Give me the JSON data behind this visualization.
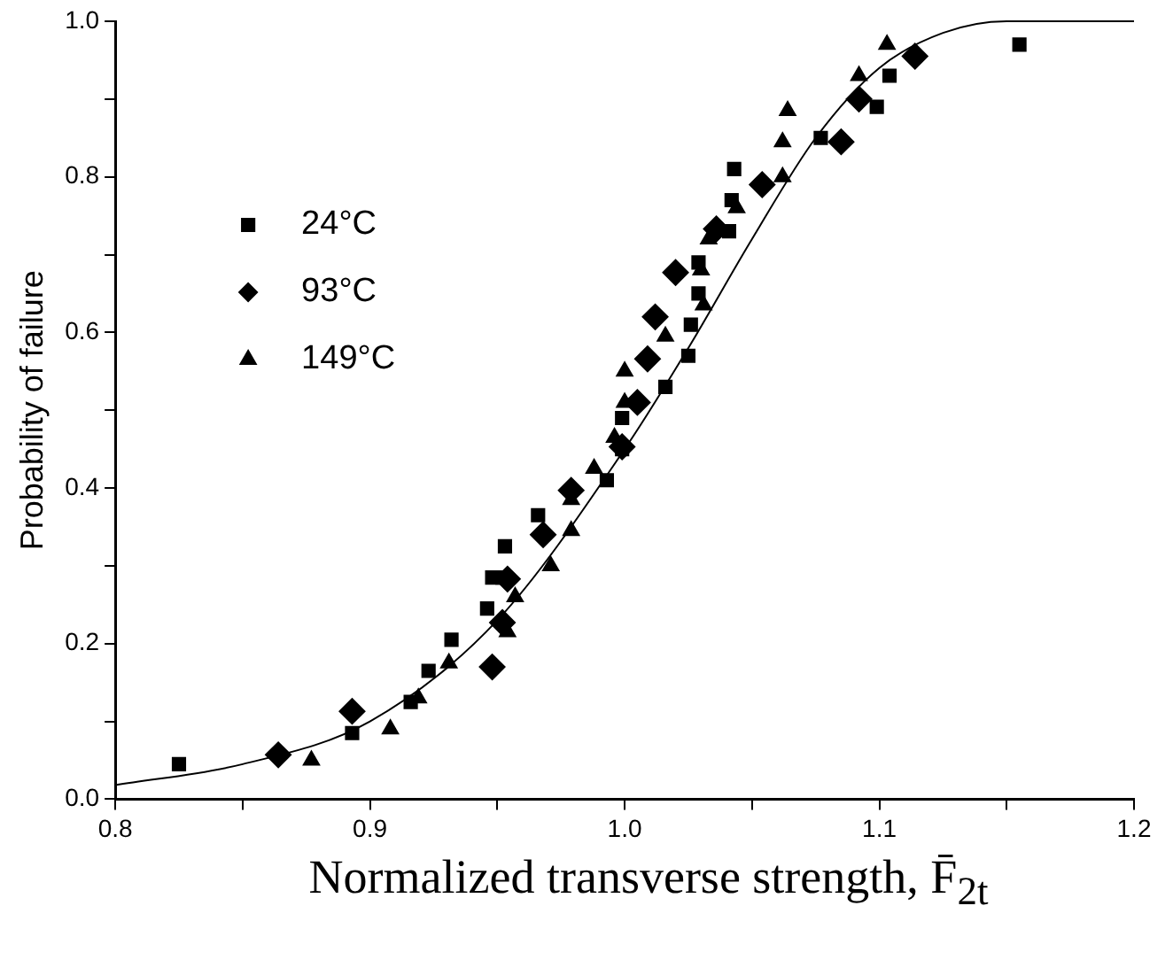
{
  "chart_data": {
    "type": "scatter",
    "xlabel": "Normalized transverse strength, F̄$_{2t}$",
    "ylabel": "Probability of failure",
    "xlim": [
      0.8,
      1.2
    ],
    "ylim": [
      0,
      1.0
    ],
    "xticks": [
      {
        "value": 0.8,
        "label": "0.8"
      },
      {
        "value": 0.85,
        "label": null
      },
      {
        "value": 0.9,
        "label": "0.9"
      },
      {
        "value": 0.95,
        "label": null
      },
      {
        "value": 1.0,
        "label": "1.0"
      },
      {
        "value": 1.05,
        "label": null
      },
      {
        "value": 1.1,
        "label": "1.1"
      },
      {
        "value": 1.15,
        "label": null
      },
      {
        "value": 1.2,
        "label": "1.2"
      }
    ],
    "yticks": [
      {
        "value": 0,
        "label": "0.0"
      },
      {
        "value": 0.1,
        "label": null
      },
      {
        "value": 0.2,
        "label": "0.2"
      },
      {
        "value": 0.3,
        "label": null
      },
      {
        "value": 0.4,
        "label": "0.4"
      },
      {
        "value": 0.5,
        "label": null
      },
      {
        "value": 0.6,
        "label": "0.6"
      },
      {
        "value": 0.7,
        "label": null
      },
      {
        "value": 0.8,
        "label": "0.8"
      },
      {
        "value": 0.9,
        "label": null
      },
      {
        "value": 1.0,
        "label": "1.0"
      }
    ],
    "grid": false,
    "legend": "top left",
    "series": [
      {
        "name": "24°C",
        "color": "#000000",
        "marker": "square",
        "x": [
          0.825,
          0.893,
          0.916,
          0.923,
          0.932,
          0.946,
          0.948,
          0.952,
          0.953,
          0.966,
          0.993,
          0.999,
          0.999,
          1.016,
          1.025,
          1.026,
          1.029,
          1.029,
          1.041,
          1.042,
          1.043,
          1.077,
          1.099,
          1.104,
          1.155
        ],
        "values": [
          0.045,
          0.085,
          0.125,
          0.165,
          0.205,
          0.245,
          0.285,
          0.285,
          0.325,
          0.365,
          0.41,
          0.45,
          0.49,
          0.53,
          0.57,
          0.61,
          0.65,
          0.69,
          0.73,
          0.77,
          0.81,
          0.85,
          0.89,
          0.93,
          0.97
        ]
      },
      {
        "name": "93°C",
        "color": "#000000",
        "marker": "diamond",
        "x": [
          0.864,
          0.893,
          0.948,
          0.952,
          0.954,
          0.968,
          0.979,
          0.999,
          1.005,
          1.009,
          1.012,
          1.02,
          1.036,
          1.054,
          1.085,
          1.092,
          1.114
        ],
        "values": [
          0.057,
          0.113,
          0.17,
          0.227,
          0.283,
          0.34,
          0.397,
          0.453,
          0.51,
          0.566,
          0.62,
          0.677,
          0.733,
          0.79,
          0.845,
          0.9,
          0.955
        ]
      },
      {
        "name": "149°C",
        "color": "#000000",
        "marker": "triangle",
        "x": [
          0.877,
          0.908,
          0.919,
          0.931,
          0.954,
          0.957,
          0.971,
          0.979,
          0.979,
          0.988,
          0.996,
          1.0,
          1.0,
          1.016,
          1.031,
          1.03,
          1.033,
          1.044,
          1.062,
          1.062,
          1.064,
          1.092,
          1.103
        ],
        "values": [
          0.05,
          0.09,
          0.13,
          0.175,
          0.215,
          0.26,
          0.3,
          0.345,
          0.385,
          0.425,
          0.465,
          0.51,
          0.55,
          0.595,
          0.635,
          0.68,
          0.72,
          0.76,
          0.8,
          0.845,
          0.885,
          0.93,
          0.97
        ]
      },
      {
        "type": "line",
        "color": "#000000",
        "marker": "none",
        "line_style": "solid",
        "x": [
          0.8,
          0.85,
          0.9,
          0.95,
          1.0,
          1.025,
          1.05,
          1.075,
          1.1,
          1.125,
          1.15,
          1.2
        ],
        "values": [
          0.018,
          0.045,
          0.1,
          0.23,
          0.45,
          0.58,
          0.72,
          0.85,
          0.94,
          0.985,
          1.0,
          1.0
        ]
      }
    ]
  }
}
